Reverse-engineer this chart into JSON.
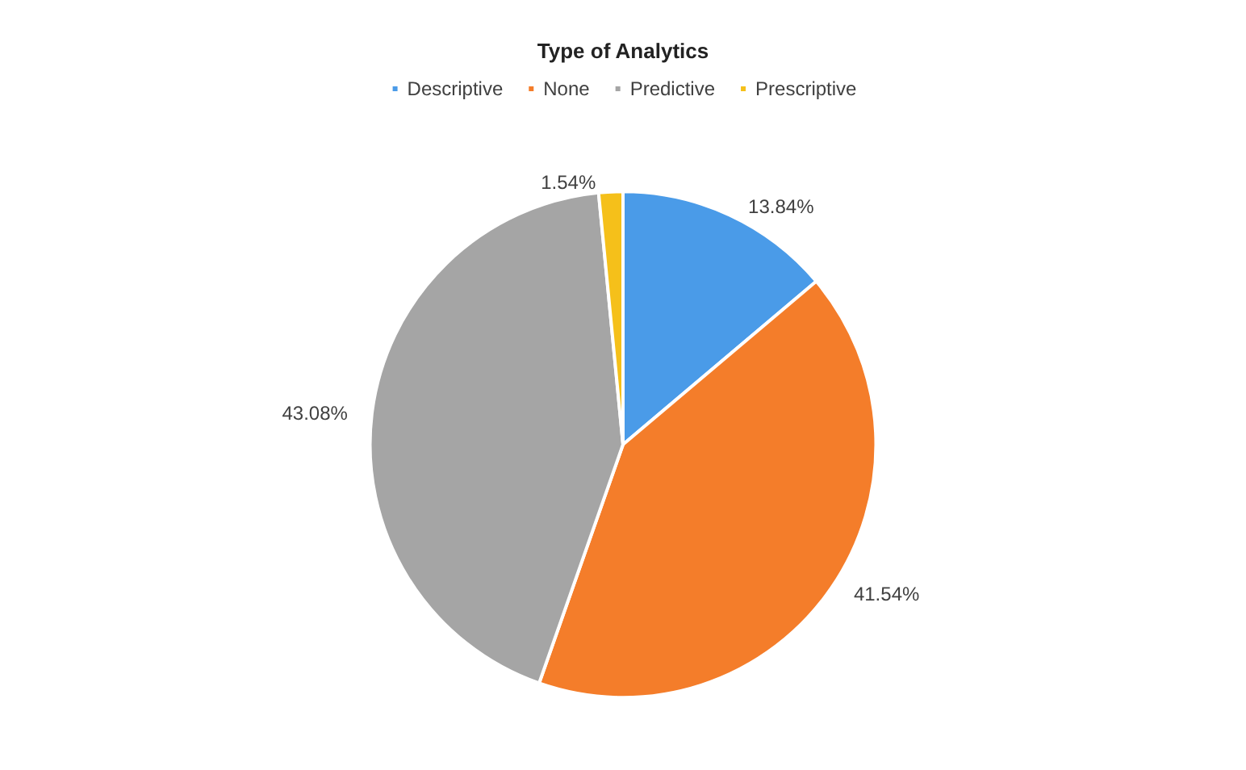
{
  "chart_data": {
    "type": "pie",
    "title": "Type of Analytics",
    "categories": [
      "Descriptive",
      "None",
      "Predictive",
      "Prescriptive"
    ],
    "values": [
      13.84,
      41.54,
      43.08,
      1.54
    ],
    "colors": [
      "#4a9be8",
      "#f47d2a",
      "#a5a5a5",
      "#f5c01a"
    ],
    "value_labels": [
      "13.84%",
      "41.54%",
      "43.08%",
      "1.54%"
    ],
    "legend": "top"
  }
}
